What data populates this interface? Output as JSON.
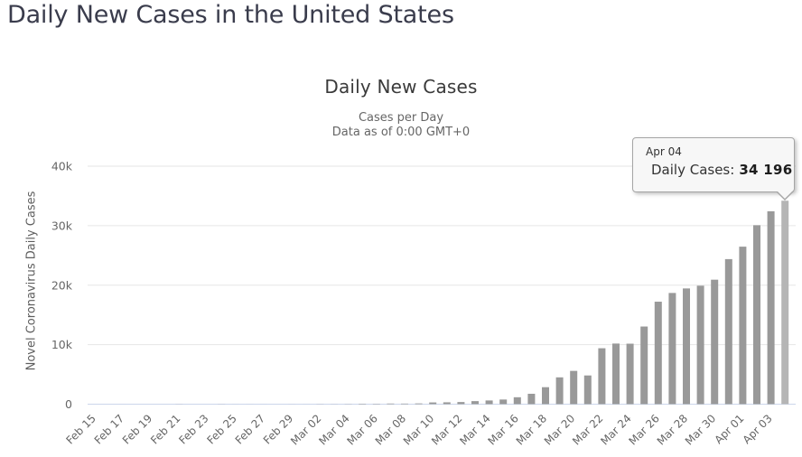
{
  "page": {
    "title": "Daily New Cases in the United States"
  },
  "chart_data": {
    "type": "bar",
    "title": "Daily New Cases",
    "subtitle": [
      "Cases per Day",
      "Data as of 0:00 GMT+0"
    ],
    "xlabel": "",
    "ylabel": "Novel Coronavirus Daily Cases",
    "ylim": [
      0,
      40000
    ],
    "yticks": [
      0,
      10000,
      20000,
      30000,
      40000
    ],
    "ytick_labels": [
      "0",
      "10k",
      "20k",
      "30k",
      "40k"
    ],
    "grid": true,
    "legend": false,
    "x_label_every": 2,
    "x_label_rotation": -45,
    "highlighted_index": 49,
    "bar_color": "#999999",
    "highlight_color": "#b5b5b5",
    "gridline_color": "#e6e6e6",
    "axis_line_color": "#ccd6eb",
    "label_color": "#666666",
    "categories": [
      "Feb 15",
      "Feb 16",
      "Feb 17",
      "Feb 18",
      "Feb 19",
      "Feb 20",
      "Feb 21",
      "Feb 22",
      "Feb 23",
      "Feb 24",
      "Feb 25",
      "Feb 26",
      "Feb 27",
      "Feb 28",
      "Feb 29",
      "Mar 01",
      "Mar 02",
      "Mar 03",
      "Mar 04",
      "Mar 05",
      "Mar 06",
      "Mar 07",
      "Mar 08",
      "Mar 09",
      "Mar 10",
      "Mar 11",
      "Mar 12",
      "Mar 13",
      "Mar 14",
      "Mar 15",
      "Mar 16",
      "Mar 17",
      "Mar 18",
      "Mar 19",
      "Mar 20",
      "Mar 21",
      "Mar 22",
      "Mar 23",
      "Mar 24",
      "Mar 25",
      "Mar 26",
      "Mar 27",
      "Mar 28",
      "Mar 29",
      "Mar 30",
      "Mar 31",
      "Apr 01",
      "Apr 02",
      "Apr 03",
      "Apr 04"
    ],
    "values": [
      0,
      0,
      2,
      0,
      0,
      1,
      19,
      0,
      0,
      18,
      4,
      6,
      3,
      1,
      8,
      6,
      23,
      19,
      33,
      77,
      63,
      105,
      95,
      123,
      291,
      313,
      358,
      511,
      621,
      783,
      1164,
      1748,
      2853,
      4507,
      5594,
      4825,
      9400,
      10189,
      10168,
      13050,
      17224,
      18691,
      19452,
      19913,
      20921,
      24379,
      26473,
      30081,
      32425,
      34196
    ]
  },
  "tooltip": {
    "date": "Apr 04",
    "series_label": "Daily Cases:",
    "value": "34 196",
    "marker_color": "#999999",
    "background": "#f7f7f7",
    "border_color": "#a5a5a5"
  }
}
